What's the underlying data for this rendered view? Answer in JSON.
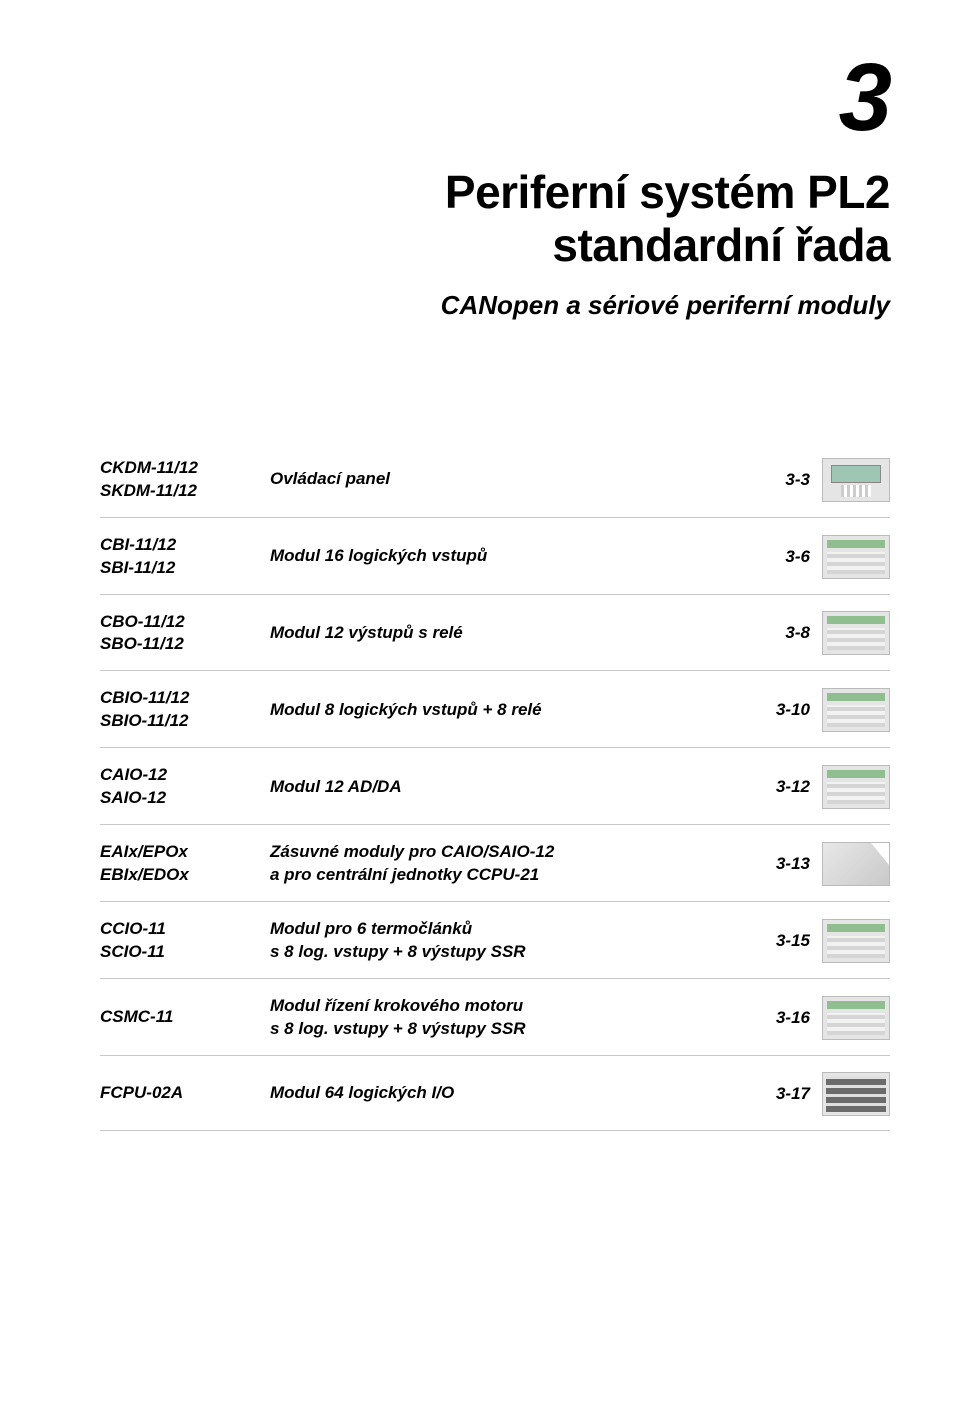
{
  "chapter_number": "3",
  "title_line1": "Periferní systém PL2",
  "title_line2": "standardní řada",
  "subtitle": "CANopen a sériové periferní moduly",
  "colors": {
    "text": "#000000",
    "rule": "#c8c8c8",
    "background": "#ffffff"
  },
  "typography": {
    "chapter_number_fontsize": 96,
    "title_fontsize": 46,
    "subtitle_fontsize": 26,
    "row_fontsize": 17,
    "font_weight": 900,
    "font_style": "italic"
  },
  "rows": [
    {
      "models": [
        "CKDM-11/12",
        "SKDM-11/12"
      ],
      "desc": "Ovládací panel",
      "page": "3-3",
      "thumb": "display"
    },
    {
      "models": [
        "CBI-11/12",
        "SBI-11/12"
      ],
      "desc": "Modul 16 logických vstupů",
      "page": "3-6",
      "thumb": "module"
    },
    {
      "models": [
        "CBO-11/12",
        "SBO-11/12"
      ],
      "desc": "Modul 12 výstupů s relé",
      "page": "3-8",
      "thumb": "module"
    },
    {
      "models": [
        "CBIO-11/12",
        "SBIO-11/12"
      ],
      "desc": "Modul 8 logických vstupů + 8 relé",
      "page": "3-10",
      "thumb": "module"
    },
    {
      "models": [
        "CAIO-12",
        "SAIO-12"
      ],
      "desc": "Modul 12 AD/DA",
      "page": "3-12",
      "thumb": "module"
    },
    {
      "models": [
        "EAIx/EPOx",
        "EBIx/EDOx"
      ],
      "desc": "Zásuvné moduly pro CAIO/SAIO-12\na pro centrální jednotky CCPU-21",
      "page": "3-13",
      "thumb": "plug"
    },
    {
      "models": [
        "CCIO-11",
        "SCIO-11"
      ],
      "desc": "Modul pro 6 termočlánků\ns 8 log. vstupy + 8 výstupy SSR",
      "page": "3-15",
      "thumb": "module"
    },
    {
      "models": [
        "CSMC-11"
      ],
      "desc": "Modul řízení krokového motoru\ns 8 log. vstupy + 8 výstupy SSR",
      "page": "3-16",
      "thumb": "module"
    },
    {
      "models": [
        "FCPU-02A"
      ],
      "desc": "Modul 64 logických I/O",
      "page": "3-17",
      "thumb": "io"
    }
  ]
}
